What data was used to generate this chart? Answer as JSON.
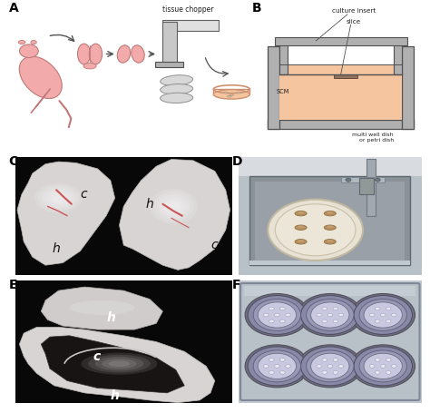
{
  "bg_color": "#ffffff",
  "panel_label_fontsize": 10,
  "panel_label_color": "#000000",
  "diagram_A": {
    "tissue_chopper_label": "tissue chopper",
    "brain_color": "#f2aaaa",
    "slice_color": "#c8c8c8",
    "petri_fill": "#f5c5a0",
    "petri_rim": "#d09070",
    "arrow_color": "#505050"
  },
  "diagram_B": {
    "wall_color": "#b0b0b0",
    "liquid_color": "#f5c5a0",
    "insert_color": "#d8d8d8",
    "outline_color": "#505050",
    "culture_insert_label": "culture insert",
    "slice_label": "slice",
    "scm_label": "SCM",
    "dish_label": "multi well dish\nor petri dish"
  },
  "panel_C": {
    "bg": "#080808",
    "tissue_left_color": "#dcdada",
    "tissue_right_color": "#dcdada",
    "label_color": "#111111",
    "vessel_color": "#cc5555"
  },
  "panel_D": {
    "bg_outer": "#c8ccd0",
    "bg_inner": "#b8bcc2",
    "tray_color": "#909898",
    "petri_color": "#e8e4da",
    "slice_color": "#c8a878",
    "arm_color": "#888888"
  },
  "panel_E": {
    "bg": "#080808",
    "tissue_color": "#e0dede",
    "label_color": "#ffffff"
  },
  "panel_F": {
    "bg_outer": "#c0c8d0",
    "plate_color": "#b8c4cc",
    "well_outer": "#8888a8",
    "well_inner": "#9898b8",
    "well_center": "#7878a0",
    "insert_color": "#c8c8e0",
    "dot_color": "#e8e8f4"
  }
}
